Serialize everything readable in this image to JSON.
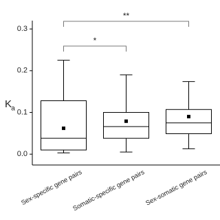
{
  "chart_data": {
    "type": "box",
    "y_label": "K",
    "y_label_sub": "a",
    "categories": [
      "Sex-specific gene pairs",
      "Somatic-specific gene pairs",
      "Sex-somatic gene pairs"
    ],
    "boxes": [
      {
        "min": 0.003,
        "q1": 0.01,
        "median": 0.038,
        "q3": 0.128,
        "max": 0.225,
        "mean": 0.062
      },
      {
        "min": 0.005,
        "q1": 0.038,
        "median": 0.066,
        "q3": 0.1,
        "max": 0.19,
        "mean": 0.079
      },
      {
        "min": 0.013,
        "q1": 0.049,
        "median": 0.075,
        "q3": 0.107,
        "max": 0.174,
        "mean": 0.09
      }
    ],
    "annotations": [
      "*",
      "**"
    ],
    "color": "#000000",
    "ylim": [
      -0.026,
      0.32
    ],
    "yticks": [
      {
        "value": 0,
        "label": "0.0"
      },
      0.1,
      0.2,
      0.3
    ]
  }
}
